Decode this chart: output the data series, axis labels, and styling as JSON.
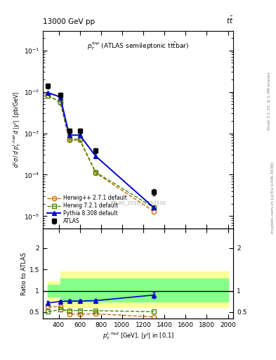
{
  "title_left": "13000 GeV pp",
  "title_right": "tt",
  "annotation": "$p_T^{top}$ (ATLAS semileptonic tt̅bar)",
  "watermark": "ATLAS_2019_I1750330",
  "right_label1": "Rivet 3.1.10, ≥ 2.4M events",
  "right_label2": "mcplots.cern.ch [arXiv:1306.3436]",
  "xlabel": "$p_T^{t,had}$ [GeV], $|y^{\\bar{t}}|$ in [0,1]",
  "ylabel_main": "$d^2\\sigma\\,/\\,d\\,p_T^{t,had}\\,d\\,|y^{\\bar{t}}|\\,$ [pb/GeV]",
  "ylabel_ratio": "Ratio to ATLAS",
  "atlas_x": [
    300,
    415,
    500,
    600,
    750,
    1300
  ],
  "atlas_y": [
    0.014,
    0.0085,
    0.00115,
    0.00115,
    0.00038,
    3.8e-05
  ],
  "atlas_yerr_lo": [
    0.002,
    0.001,
    0.00015,
    0.00015,
    5e-05,
    6e-06
  ],
  "atlas_yerr_hi": [
    0.002,
    0.001,
    0.00015,
    0.00015,
    5e-05,
    6e-06
  ],
  "herwigpp_x": [
    300,
    415,
    500,
    600,
    750,
    1300
  ],
  "herwigpp_y": [
    0.0082,
    0.0055,
    0.00068,
    0.00068,
    0.00011,
    1.3e-05
  ],
  "herwig721_x": [
    300,
    415,
    500,
    600,
    750,
    1300
  ],
  "herwig721_y": [
    0.0082,
    0.0057,
    0.00072,
    0.00072,
    0.000115,
    1.6e-05
  ],
  "pythia_x": [
    300,
    415,
    500,
    600,
    750,
    1300
  ],
  "pythia_y": [
    0.0095,
    0.0075,
    0.0009,
    0.0009,
    0.00028,
    1.6e-05
  ],
  "ratio_herwigpp_x": [
    300,
    415,
    500,
    600,
    750,
    1300
  ],
  "ratio_herwigpp_y": [
    0.625,
    0.63,
    0.455,
    0.455,
    0.46,
    0.39
  ],
  "ratio_herwig721_x": [
    300,
    415,
    500,
    600,
    750,
    1300
  ],
  "ratio_herwig721_y": [
    0.51,
    0.56,
    0.54,
    0.54,
    0.535,
    0.51
  ],
  "ratio_pythia_x": [
    300,
    415,
    500,
    600,
    750,
    1300
  ],
  "ratio_pythia_y": [
    0.715,
    0.75,
    0.76,
    0.76,
    0.77,
    0.9
  ],
  "ratio_pythia_yerr": [
    0.04,
    0.03,
    0.03,
    0.03,
    0.04,
    0.07
  ],
  "band_yellow_edges": [
    300,
    415,
    500,
    2000
  ],
  "band_yellow_lo": [
    0.78,
    0.62,
    0.62,
    0.62
  ],
  "band_yellow_hi": [
    1.22,
    1.45,
    1.45,
    1.45
  ],
  "band_green_edges": [
    300,
    415,
    500,
    2000
  ],
  "band_green_lo": [
    0.86,
    0.74,
    0.74,
    0.74
  ],
  "band_green_hi": [
    1.14,
    1.28,
    1.28,
    1.28
  ],
  "color_atlas": "#000000",
  "color_herwigpp": "#cc6600",
  "color_herwig721": "#448800",
  "color_pythia": "#0000cc",
  "color_yellow": "#ffff99",
  "color_green": "#88ff88",
  "ylim_main": [
    5e-06,
    0.3
  ],
  "ylim_ratio": [
    0.35,
    2.45
  ],
  "xlim": [
    250,
    2050
  ]
}
